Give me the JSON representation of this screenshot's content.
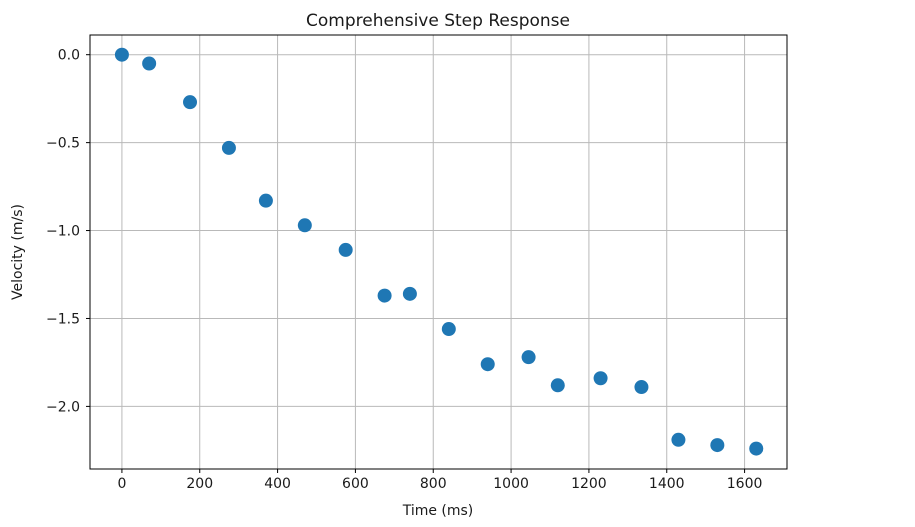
{
  "chart_data": {
    "type": "scatter",
    "title": "Comprehensive Step Response",
    "xlabel": "Time (ms)",
    "ylabel": "Velocity (m/s)",
    "x": [
      0,
      70,
      175,
      275,
      370,
      470,
      575,
      675,
      740,
      840,
      940,
      1045,
      1120,
      1230,
      1335,
      1430,
      1530,
      1630
    ],
    "y": [
      0.0,
      -0.05,
      -0.27,
      -0.53,
      -0.83,
      -0.97,
      -1.11,
      -1.37,
      -1.36,
      -1.56,
      -1.76,
      -1.72,
      -1.88,
      -1.84,
      -1.89,
      -2.19,
      -2.22,
      -2.24
    ],
    "xlim": [
      -82,
      1709
    ],
    "ylim": [
      -2.356,
      0.112
    ],
    "xticks": [
      0,
      200,
      400,
      600,
      800,
      1000,
      1200,
      1400,
      1600
    ],
    "xtick_labels": [
      "0",
      "200",
      "400",
      "600",
      "800",
      "1000",
      "1200",
      "1400",
      "1600"
    ],
    "yticks": [
      0.0,
      -0.5,
      -1.0,
      -1.5,
      -2.0
    ],
    "ytick_labels": [
      "0.0",
      "−0.5",
      "−1.0",
      "−1.5",
      "−2.0"
    ],
    "grid": true,
    "legend": null,
    "marker_color": "#1f77b4",
    "marker_radius": 7,
    "grid_color": "#b9b9b9",
    "spine_color": "#000000",
    "tick_color": "#000000"
  }
}
